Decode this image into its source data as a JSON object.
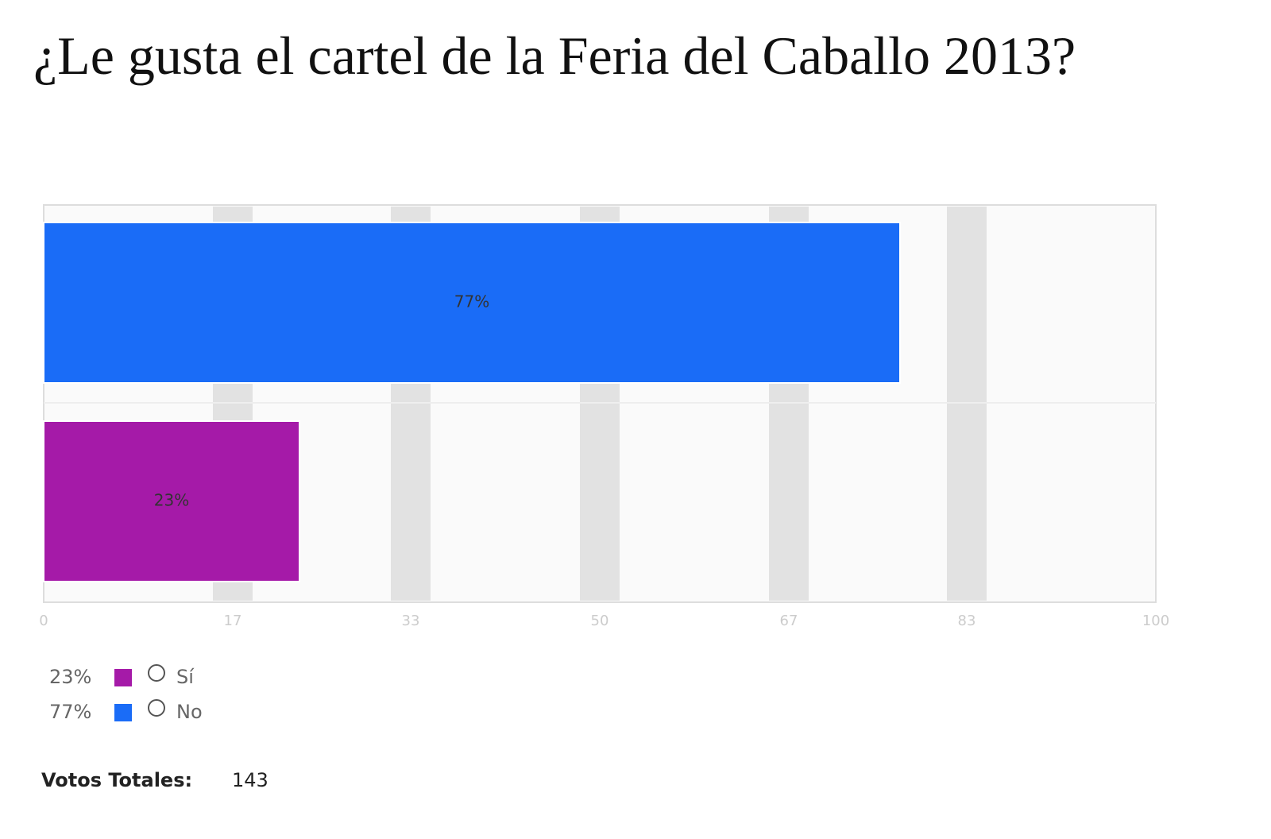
{
  "chart_data": {
    "type": "hbar",
    "title": "¿Le gusta el cartel de la Feria del Caballo 2013?",
    "series": [
      {
        "name": "Sí",
        "color": "#a51aa8",
        "values": [
          23
        ],
        "value_labels": [
          "23%"
        ]
      },
      {
        "name": "No",
        "color": "#1a6cf7",
        "values": [
          77
        ],
        "value_labels": [
          "77%"
        ]
      }
    ],
    "xlim": [
      0,
      100
    ],
    "xticks": [
      0,
      17,
      33,
      50,
      67,
      83,
      100
    ],
    "grid": true
  },
  "footer": {
    "label": "Votos Totales:",
    "value": "143"
  }
}
